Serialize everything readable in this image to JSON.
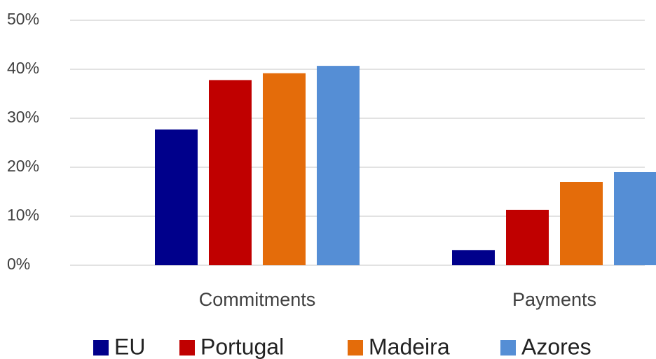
{
  "chart_data": {
    "type": "bar",
    "categories": [
      "Commitments",
      "Payments"
    ],
    "series": [
      {
        "name": "EU",
        "color": "#00008b",
        "values": [
          27.7,
          3.1
        ]
      },
      {
        "name": "Portugal",
        "color": "#c00000",
        "values": [
          37.8,
          11.3
        ]
      },
      {
        "name": "Madeira",
        "color": "#e46c0a",
        "values": [
          39.2,
          17.0
        ]
      },
      {
        "name": "Azores",
        "color": "#558ed5",
        "values": [
          40.7,
          19.0
        ]
      }
    ],
    "ylim": [
      0,
      50
    ],
    "yticks": [
      {
        "value": 0,
        "label": "0%"
      },
      {
        "value": 10,
        "label": "10%"
      },
      {
        "value": 20,
        "label": "20%"
      },
      {
        "value": 30,
        "label": "30%"
      },
      {
        "value": 40,
        "label": "40%"
      },
      {
        "value": 50,
        "label": "50%"
      }
    ],
    "grid": true,
    "legend": "bottom"
  }
}
